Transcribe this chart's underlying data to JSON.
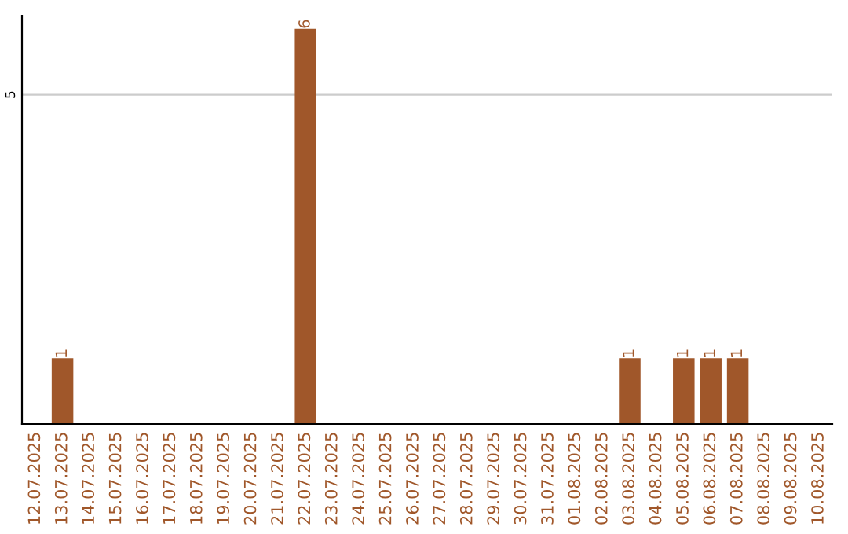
{
  "chart_data": {
    "type": "bar",
    "categories": [
      "12.07.2025",
      "13.07.2025",
      "14.07.2025",
      "15.07.2025",
      "16.07.2025",
      "17.07.2025",
      "18.07.2025",
      "19.07.2025",
      "20.07.2025",
      "21.07.2025",
      "22.07.2025",
      "23.07.2025",
      "24.07.2025",
      "25.07.2025",
      "26.07.2025",
      "27.07.2025",
      "28.07.2025",
      "29.07.2025",
      "30.07.2025",
      "31.07.2025",
      "01.08.2025",
      "02.08.2025",
      "03.08.2025",
      "04.08.2025",
      "05.08.2025",
      "06.08.2025",
      "07.08.2025",
      "08.08.2025",
      "09.08.2025",
      "10.08.2025"
    ],
    "values": [
      0,
      1,
      0,
      0,
      0,
      0,
      0,
      0,
      0,
      0,
      6,
      0,
      0,
      0,
      0,
      0,
      0,
      0,
      0,
      0,
      0,
      0,
      1,
      0,
      1,
      1,
      1,
      0,
      0,
      0
    ],
    "value_labels": [
      null,
      "1",
      null,
      null,
      null,
      null,
      null,
      null,
      null,
      null,
      "6",
      null,
      null,
      null,
      null,
      null,
      null,
      null,
      null,
      null,
      null,
      null,
      "1",
      null,
      "1",
      "1",
      "1",
      null,
      null,
      null
    ],
    "color": "#a0572a",
    "ylim": [
      0,
      6.2
    ],
    "yticks": [
      5
    ],
    "grid": "y",
    "legend": false
  }
}
